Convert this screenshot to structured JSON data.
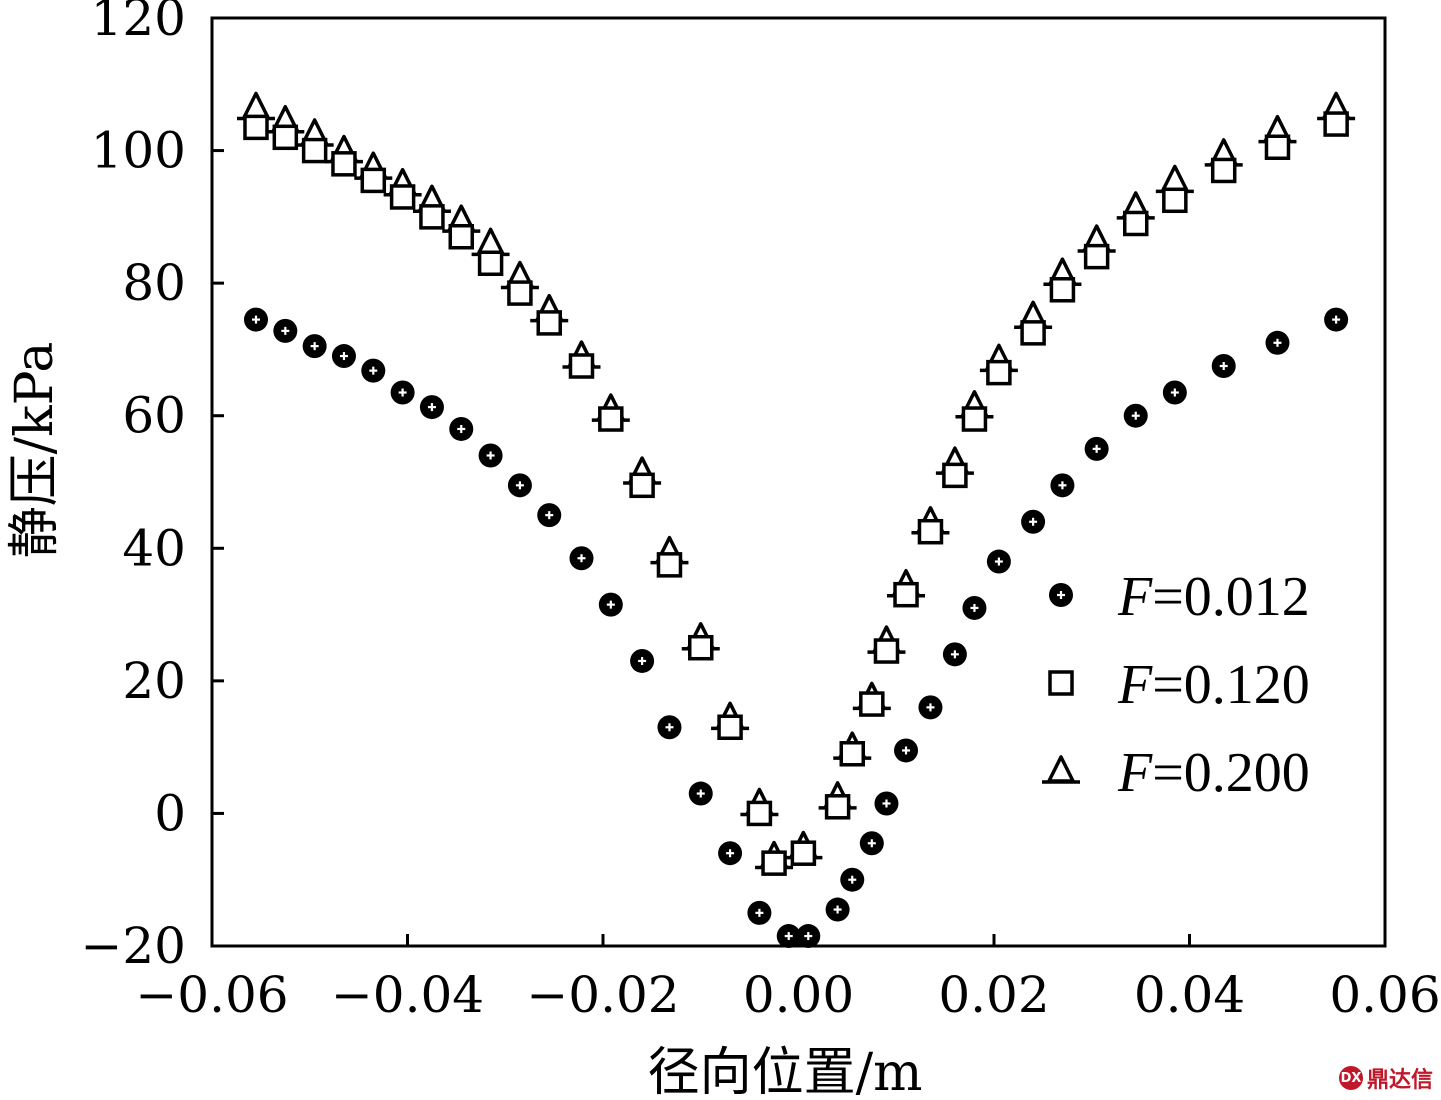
{
  "chart_data": {
    "type": "scatter",
    "title": "",
    "xlabel": "径向位置/m",
    "ylabel": "静压/kPa",
    "xlim": [
      -0.06,
      0.06
    ],
    "ylim": [
      -20,
      120
    ],
    "xticks": [
      -0.06,
      -0.04,
      -0.02,
      0.0,
      0.02,
      0.04,
      0.06
    ],
    "xtick_labels": [
      "−0.06",
      "−0.04",
      "−0.02",
      "0.00",
      "0.02",
      "0.04",
      "0.06"
    ],
    "yticks": [
      -20,
      0,
      20,
      40,
      60,
      80,
      100,
      120
    ],
    "ytick_labels": [
      "−20",
      "0",
      "20",
      "40",
      "60",
      "80",
      "100",
      "120"
    ],
    "grid": false,
    "legend_position": "right",
    "series": [
      {
        "name": "F=0.012",
        "name_var": "F",
        "name_value": "=0.012",
        "marker": "filled-circle",
        "x": [
          -0.0555,
          -0.0525,
          -0.0495,
          -0.0465,
          -0.0435,
          -0.0405,
          -0.0375,
          -0.0345,
          -0.0315,
          -0.0285,
          -0.0255,
          -0.0222,
          -0.0192,
          -0.016,
          -0.0132,
          -0.01,
          -0.007,
          -0.004,
          -0.001,
          0.001,
          0.004,
          0.0055,
          0.0075,
          0.009,
          0.011,
          0.0135,
          0.016,
          0.018,
          0.0205,
          0.024,
          0.027,
          0.0305,
          0.0345,
          0.0385,
          0.0435,
          0.049,
          0.055
        ],
        "y": [
          74.5,
          72.8,
          70.5,
          69.0,
          66.8,
          63.5,
          61.3,
          58.0,
          54.0,
          49.5,
          45.0,
          38.5,
          31.5,
          23.0,
          13.0,
          3.0,
          -6.0,
          -15.0,
          -18.5,
          -18.5,
          -14.5,
          -10.0,
          -4.5,
          1.5,
          9.5,
          16.0,
          24.0,
          31.0,
          38.0,
          44.0,
          49.5,
          55.0,
          60.0,
          63.5,
          67.5,
          71.0,
          74.5
        ]
      },
      {
        "name": "F=0.120",
        "name_var": "F",
        "name_value": "=0.120",
        "marker": "open-square",
        "x": [
          -0.0555,
          -0.0525,
          -0.0495,
          -0.0465,
          -0.0435,
          -0.0405,
          -0.0375,
          -0.0345,
          -0.0315,
          -0.0285,
          -0.0255,
          -0.0222,
          -0.0192,
          -0.016,
          -0.0132,
          -0.01,
          -0.007,
          -0.004,
          -0.0025,
          0.0005,
          0.004,
          0.0055,
          0.0075,
          0.009,
          0.011,
          0.0135,
          0.016,
          0.018,
          0.0205,
          0.024,
          0.027,
          0.0305,
          0.0345,
          0.0385,
          0.0435,
          0.049,
          0.055
        ],
        "y": [
          103.5,
          102.0,
          100.0,
          98.0,
          95.5,
          93.0,
          90.0,
          87.0,
          83.0,
          78.5,
          74.0,
          67.5,
          59.5,
          49.5,
          37.5,
          25.0,
          13.0,
          0.0,
          -7.5,
          -6.0,
          1.0,
          9.0,
          16.5,
          24.5,
          33.0,
          42.5,
          51.0,
          59.5,
          66.5,
          72.5,
          79.0,
          84.0,
          89.0,
          92.5,
          97.0,
          100.5,
          104.0
        ]
      },
      {
        "name": "F=0.200",
        "name_var": "F",
        "name_value": "=0.200",
        "marker": "open-triangle",
        "x": [
          -0.0555,
          -0.0525,
          -0.0495,
          -0.0465,
          -0.0435,
          -0.0405,
          -0.0375,
          -0.0345,
          -0.0315,
          -0.0285,
          -0.0255,
          -0.0222,
          -0.0192,
          -0.016,
          -0.0132,
          -0.01,
          -0.007,
          -0.004,
          -0.0025,
          0.0005,
          0.004,
          0.0055,
          0.0075,
          0.009,
          0.011,
          0.0135,
          0.016,
          0.018,
          0.0205,
          0.024,
          0.027,
          0.0305,
          0.0345,
          0.0385,
          0.0435,
          0.049,
          0.055
        ],
        "y": [
          106.5,
          104.5,
          102.5,
          100.0,
          97.5,
          95.0,
          92.5,
          89.5,
          86.0,
          81.0,
          76.0,
          69.0,
          61.0,
          51.5,
          39.5,
          26.5,
          14.5,
          1.5,
          -6.5,
          -5.0,
          2.5,
          10.0,
          17.5,
          26.0,
          34.5,
          44.0,
          53.0,
          61.5,
          68.5,
          75.0,
          81.5,
          86.5,
          91.5,
          95.5,
          99.5,
          103.0,
          106.5
        ]
      }
    ]
  },
  "watermark": {
    "logo_text": "DX",
    "text": "鼎达信"
  }
}
